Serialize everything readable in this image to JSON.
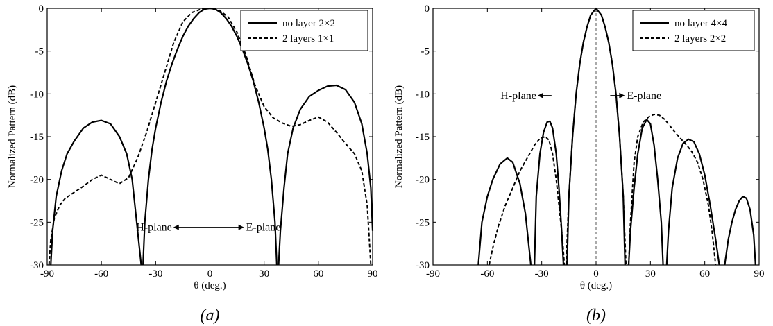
{
  "chart_data": [
    {
      "panel_label": "(a)",
      "type": "line",
      "title": "",
      "xlabel": "θ (deg.)",
      "ylabel": "Normalized Pattern (dB)",
      "xlim": [
        -90,
        90
      ],
      "ylim": [
        -30,
        0
      ],
      "xticks": [
        -90,
        -60,
        -30,
        0,
        30,
        60,
        90
      ],
      "yticks": [
        0,
        -5,
        -10,
        -15,
        -20,
        -25,
        -30
      ],
      "legend_position": "top-right",
      "annotations": [
        {
          "text": "H-plane",
          "x": -21,
          "y": -25.6
        },
        {
          "text": "E-plane",
          "x": 20,
          "y": -25.6
        }
      ],
      "series": [
        {
          "name": "no layer 2×2",
          "style": "solid",
          "x": [
            -88,
            -87,
            -85,
            -82,
            -79,
            -75,
            -70,
            -65,
            -60,
            -55,
            -50,
            -46,
            -43,
            -41,
            -39,
            -38
          ],
          "y": [
            -30,
            -26,
            -22,
            -19,
            -17,
            -15.5,
            -14,
            -13.3,
            -13.1,
            -13.5,
            -15,
            -17,
            -20,
            -24,
            -28,
            -30
          ]
        },
        {
          "name": "no layer 2×2",
          "style": "solid",
          "x": [
            -37,
            -36,
            -34,
            -32,
            -30,
            -27,
            -24,
            -21,
            -18,
            -15,
            -12,
            -9,
            -6,
            -3,
            0,
            3,
            6,
            9,
            12,
            15,
            18,
            21,
            24,
            27,
            30,
            32,
            34,
            36,
            37
          ],
          "y": [
            -30,
            -25,
            -20,
            -16.5,
            -14,
            -11,
            -8.5,
            -6.5,
            -4.8,
            -3.3,
            -2.1,
            -1.2,
            -0.5,
            -0.1,
            0,
            -0.1,
            -0.5,
            -1.2,
            -2.1,
            -3.3,
            -4.8,
            -6.5,
            -8.5,
            -11,
            -14,
            -16.5,
            -20,
            -25,
            -30
          ]
        },
        {
          "name": "no layer 2×2",
          "style": "solid",
          "x": [
            38,
            39,
            41,
            43,
            46,
            50,
            55,
            60,
            65,
            70,
            75,
            80,
            84,
            87,
            89,
            90
          ],
          "y": [
            -30,
            -26,
            -21,
            -17,
            -14,
            -11.8,
            -10.3,
            -9.6,
            -9.1,
            -9,
            -9.5,
            -11,
            -13.5,
            -17,
            -21,
            -26
          ]
        },
        {
          "name": "2 layers 1×1",
          "style": "dashed",
          "x": [
            -89,
            -88,
            -86,
            -83,
            -80,
            -75,
            -70,
            -65,
            -60,
            -55,
            -50,
            -45,
            -40,
            -35,
            -30,
            -25,
            -20,
            -15,
            -10,
            -5,
            0,
            5,
            10,
            15,
            20,
            25,
            30,
            35,
            40,
            45,
            50,
            55,
            60,
            65,
            70,
            75,
            80,
            84,
            87,
            89
          ],
          "y": [
            -30,
            -27,
            -24.5,
            -23,
            -22.2,
            -21.5,
            -20.8,
            -20,
            -19.5,
            -20,
            -20.5,
            -19.8,
            -17.5,
            -14.5,
            -11,
            -7.5,
            -4,
            -1.6,
            -0.5,
            -0.1,
            0,
            -0.2,
            -1,
            -2.8,
            -5.5,
            -9,
            -11.5,
            -12.8,
            -13.4,
            -13.8,
            -13.6,
            -13.1,
            -12.7,
            -13.3,
            -14.5,
            -15.8,
            -17,
            -19,
            -23,
            -30
          ]
        }
      ]
    },
    {
      "panel_label": "(b)",
      "type": "line",
      "title": "",
      "xlabel": "θ (deg.)",
      "ylabel": "Normalized Pattern (dB)",
      "xlim": [
        -90,
        90
      ],
      "ylim": [
        -30,
        0
      ],
      "xticks": [
        -90,
        -60,
        -30,
        0,
        30,
        60,
        90
      ],
      "yticks": [
        0,
        -5,
        -10,
        -15,
        -20,
        -25,
        -30
      ],
      "legend_position": "top-right",
      "annotations": [
        {
          "text": "H-plane",
          "x": -33,
          "y": -10.2
        },
        {
          "text": "E-plane",
          "x": 17,
          "y": -10.2
        }
      ],
      "series": [
        {
          "name": "no layer 4×4",
          "style": "solid",
          "x": [
            -65,
            -63,
            -60,
            -57,
            -53,
            -49,
            -46,
            -42,
            -39,
            -37,
            -36
          ],
          "y": [
            -30,
            -25,
            -22,
            -20,
            -18.2,
            -17.5,
            -18,
            -20.5,
            -24,
            -28,
            -30
          ]
        },
        {
          "name": "no layer 4×4",
          "style": "solid",
          "x": [
            -34,
            -33,
            -31,
            -29,
            -27,
            -25.5,
            -24,
            -22,
            -20.5,
            -19,
            -18
          ],
          "y": [
            -30,
            -22,
            -17,
            -14.5,
            -13.3,
            -13.2,
            -14,
            -17,
            -21,
            -26,
            -30
          ]
        },
        {
          "name": "no layer 4×4",
          "style": "solid",
          "x": [
            -16,
            -15,
            -13,
            -11,
            -9,
            -7,
            -5,
            -3,
            0,
            3,
            5,
            7,
            9,
            11,
            13,
            15,
            16
          ],
          "y": [
            -30,
            -22,
            -15,
            -10,
            -6.5,
            -4,
            -2.2,
            -0.8,
            0,
            -0.8,
            -2.2,
            -4,
            -6.5,
            -10,
            -15,
            -22,
            -30
          ]
        },
        {
          "name": "no layer 4×4",
          "style": "solid",
          "x": [
            18,
            19,
            21,
            23,
            25.5,
            28,
            30,
            32,
            34,
            36,
            37
          ],
          "y": [
            -30,
            -26,
            -21,
            -17,
            -14,
            -13,
            -13.5,
            -16,
            -20,
            -25,
            -30
          ]
        },
        {
          "name": "no layer 4×4",
          "style": "solid",
          "x": [
            39,
            40,
            42,
            45,
            48,
            51,
            54,
            57,
            60,
            63,
            66,
            68
          ],
          "y": [
            -30,
            -26,
            -21,
            -17.5,
            -15.8,
            -15.3,
            -15.6,
            -17,
            -19.5,
            -23,
            -27,
            -30
          ]
        },
        {
          "name": "no layer 4×4",
          "style": "solid",
          "x": [
            71,
            73,
            75,
            77,
            79,
            81,
            83,
            85,
            87,
            88
          ],
          "y": [
            -30,
            -27,
            -25,
            -23.5,
            -22.5,
            -22,
            -22.2,
            -23.5,
            -26.5,
            -30
          ]
        },
        {
          "name": "2 layers 2×2",
          "style": "dashed",
          "x": [
            -59,
            -57,
            -54,
            -50,
            -46,
            -42,
            -38,
            -34,
            -31,
            -28,
            -26,
            -24,
            -22,
            -20,
            -18.5,
            -17.5
          ],
          "y": [
            -30,
            -28,
            -25.5,
            -23,
            -21,
            -19,
            -17.5,
            -16,
            -15.2,
            -15,
            -15.4,
            -17,
            -20,
            -24,
            -27,
            -30
          ]
        },
        {
          "name": "2 layers 2×2",
          "style": "dashed",
          "x": [
            -16.5,
            -15,
            -13,
            -11,
            -9,
            -7,
            -5,
            -3,
            0,
            3,
            5,
            7,
            9,
            11,
            13,
            15,
            16.5
          ],
          "y": [
            -30,
            -22,
            -15,
            -10,
            -6.5,
            -4,
            -2.2,
            -0.8,
            0,
            -0.8,
            -2.2,
            -4,
            -6.5,
            -10,
            -15,
            -22,
            -30
          ]
        },
        {
          "name": "2 layers 2×2",
          "style": "dashed",
          "x": [
            18,
            19,
            21,
            23,
            26,
            29,
            32,
            35,
            38,
            41,
            44,
            47,
            50,
            53,
            56,
            59,
            62,
            64,
            66
          ],
          "y": [
            -30,
            -25,
            -18,
            -15,
            -13.3,
            -12.7,
            -12.4,
            -12.5,
            -13,
            -13.8,
            -14.6,
            -15.3,
            -16,
            -16.8,
            -18,
            -20,
            -23,
            -26,
            -30
          ]
        }
      ]
    }
  ]
}
